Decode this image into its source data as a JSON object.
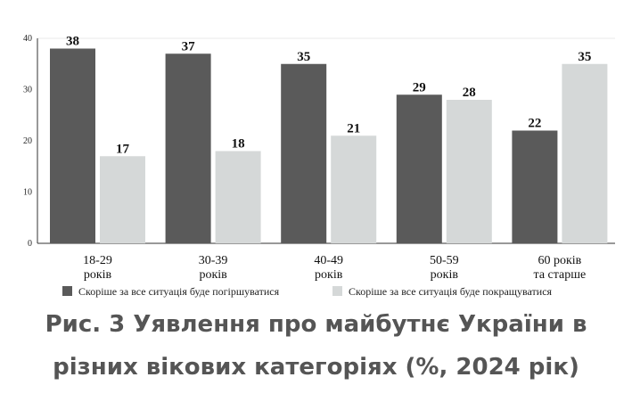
{
  "caption": {
    "line1": "Рис. 3 Уявлення про майбутнє України в",
    "line2": "різних вікових категоріях (%, 2024 рік)"
  },
  "colors": {
    "worse": "#5a5a5a",
    "better": "#d5d8d8",
    "axis": "#333333",
    "grid": "#e8e8e8"
  },
  "chart_data": {
    "type": "bar",
    "categories": [
      [
        "18-29",
        "років"
      ],
      [
        "30-39",
        "років"
      ],
      [
        "40-49",
        "років"
      ],
      [
        "50-59",
        "років"
      ],
      [
        "60 років",
        "та старше"
      ]
    ],
    "series": [
      {
        "name": "Скоріше за все ситуація буде погіршуватися",
        "values": [
          38,
          37,
          35,
          29,
          22
        ]
      },
      {
        "name": "Скоріше за все ситуація буде покращуватися",
        "values": [
          17,
          18,
          21,
          28,
          35
        ]
      }
    ],
    "yticks": [
      0,
      10,
      20,
      30,
      40
    ],
    "ylim": [
      0,
      40
    ],
    "legend_position": "bottom",
    "grid": false
  }
}
